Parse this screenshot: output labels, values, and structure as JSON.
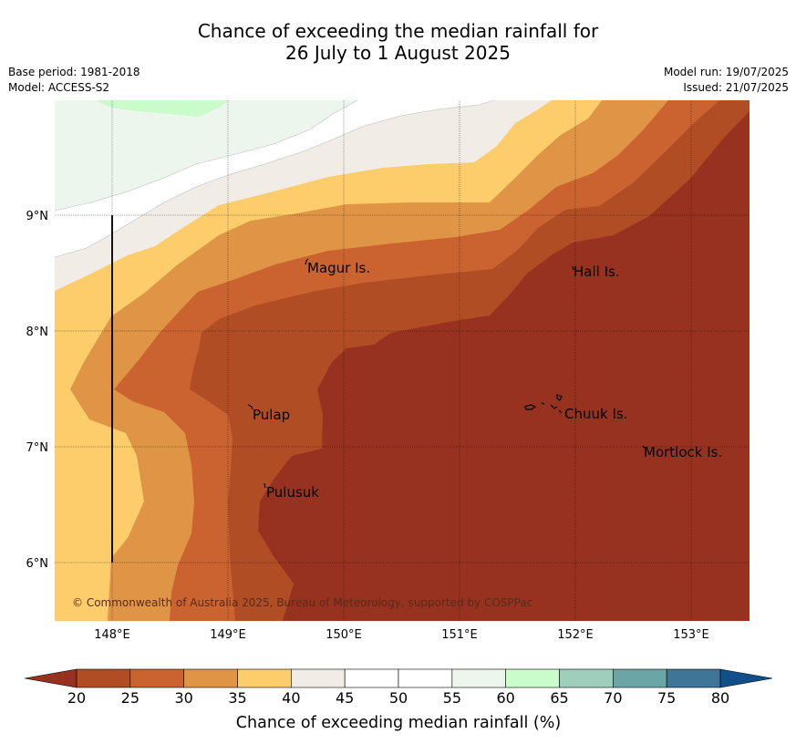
{
  "title": {
    "line1": "Chance of exceeding the median rainfall for",
    "line2": "26 July to 1 August 2025"
  },
  "meta": {
    "base_period": "Base period: 1981-2018",
    "model": "Model: ACCESS-S2",
    "model_run": "Model run: 19/07/2025",
    "issued": "Issued: 21/07/2025"
  },
  "axes": {
    "lat_ticks": [
      "9°N",
      "8°N",
      "7°N",
      "6°N"
    ],
    "lon_ticks": [
      "148°E",
      "149°E",
      "150°E",
      "151°E",
      "152°E",
      "153°E"
    ]
  },
  "places": [
    {
      "name": "Magur Is."
    },
    {
      "name": "Hall Is."
    },
    {
      "name": "Pulap"
    },
    {
      "name": "Chuuk Is."
    },
    {
      "name": "Mortlock Is."
    },
    {
      "name": "Pulusuk"
    }
  ],
  "copyright": "© Commonwealth of Australia 2025, Bureau of Meteorology, supported by COSPPac",
  "colorbar": {
    "ticks": [
      "20",
      "25",
      "30",
      "35",
      "40",
      "45",
      "50",
      "55",
      "60",
      "65",
      "70",
      "75",
      "80"
    ],
    "colors": [
      "#b14d25",
      "#cb6331",
      "#e09546",
      "#fdcd6b",
      "#f1ede6",
      "#ffffff",
      "#ffffff",
      "#edf6ec",
      "#c9fbcb",
      "#9ecfbc",
      "#6ca5a6",
      "#3f7697"
    ],
    "under_color": "#96321f",
    "over_color": "#124f88",
    "label": "Chance of exceeding median rainfall (%)"
  },
  "colors": {
    "c20": "#96321f",
    "c25": "#b14d25",
    "c30": "#cb6331",
    "c35": "#e09546",
    "c40": "#fdcd6b",
    "c45": "#f1ede6",
    "c55": "#edf6ec",
    "c60": "#c9fbcb"
  }
}
